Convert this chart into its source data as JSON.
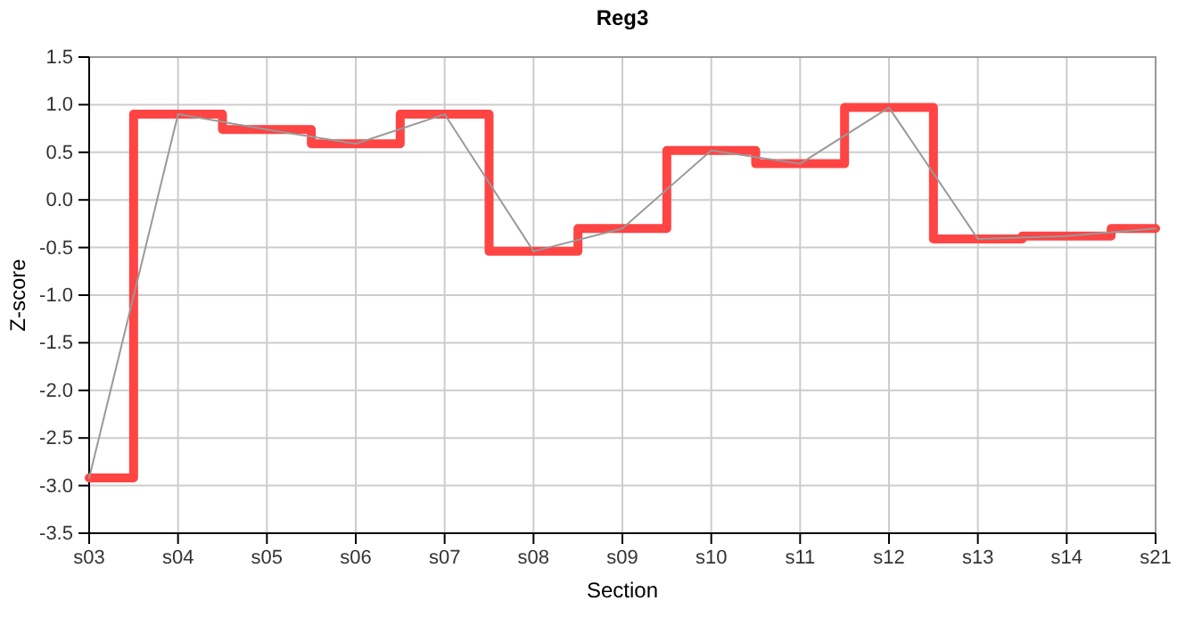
{
  "chart_data": {
    "type": "line",
    "title": "Reg3",
    "xlabel": "Section",
    "ylabel": "Z-score",
    "categories": [
      "s03",
      "s04",
      "s05",
      "s06",
      "s07",
      "s08",
      "s09",
      "s10",
      "s11",
      "s12",
      "s13",
      "s14",
      "s21"
    ],
    "series": [
      {
        "type": "step",
        "color": "#ff4444",
        "values": [
          -2.92,
          0.9,
          0.74,
          0.59,
          0.9,
          -0.54,
          -0.3,
          0.52,
          0.38,
          0.97,
          -0.41,
          -0.38,
          -0.3
        ]
      },
      {
        "color": "#999999",
        "values": [
          -2.92,
          0.9,
          0.74,
          0.59,
          0.9,
          -0.54,
          -0.3,
          0.52,
          0.38,
          0.97,
          -0.41,
          -0.38,
          -0.3
        ]
      }
    ],
    "ylim": [
      -3.5,
      1.5
    ],
    "yticks": [
      {
        "value": -3.5,
        "label": "-3.5"
      },
      {
        "value": -3,
        "label": "-3.0"
      },
      {
        "value": -2.5,
        "label": "-2.5"
      },
      {
        "value": -2,
        "label": "-2.0"
      },
      {
        "value": -1.5,
        "label": "-1.5"
      },
      {
        "value": -1,
        "label": "-1.0"
      },
      {
        "value": -0.5,
        "label": "-0.5"
      },
      {
        "value": 0,
        "label": "0.0"
      },
      0.5,
      {
        "value": 1,
        "label": "1.0"
      },
      1.5
    ],
    "grid": true,
    "marker": "none",
    "line_style": "solid"
  }
}
